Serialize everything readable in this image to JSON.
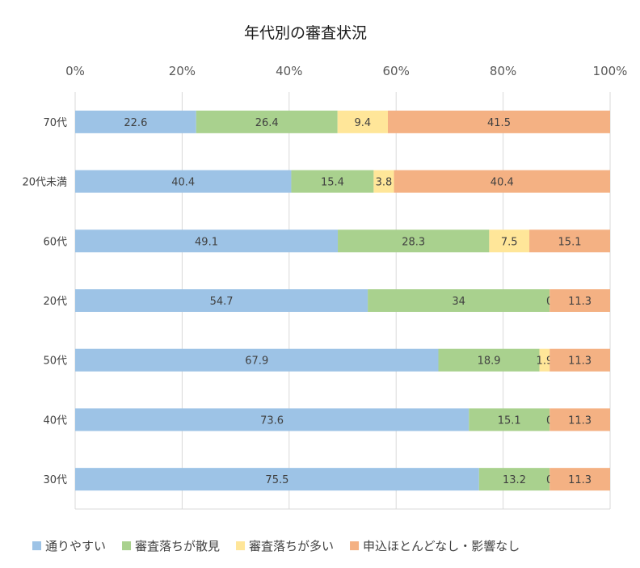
{
  "chart_data": {
    "type": "bar",
    "orientation": "horizontal",
    "stacked": "percent",
    "title": "年代別の審査状況",
    "xlabel": "",
    "ylabel": "",
    "xlim": [
      0,
      100
    ],
    "x_ticks": [
      "0%",
      "20%",
      "40%",
      "60%",
      "80%",
      "100%"
    ],
    "grid": true,
    "legend_position": "bottom",
    "categories": [
      "70代",
      "20代未満",
      "60代",
      "20代",
      "50代",
      "40代",
      "30代"
    ],
    "series": [
      {
        "name": "通りやすい",
        "color": "#9dc3e6",
        "values": [
          22.6,
          40.4,
          49.1,
          54.7,
          67.9,
          73.6,
          75.5
        ]
      },
      {
        "name": "審査落ちが散見",
        "color": "#a9d18e",
        "values": [
          26.4,
          15.4,
          28.3,
          34,
          18.9,
          15.1,
          13.2
        ]
      },
      {
        "name": "審査落ちが多い",
        "color": "#ffe699",
        "values": [
          9.4,
          3.8,
          7.5,
          0,
          1.9,
          0,
          0
        ]
      },
      {
        "name": "申込ほとんどなし・影響なし",
        "color": "#f4b183",
        "values": [
          41.5,
          40.4,
          15.1,
          11.3,
          11.3,
          11.3,
          11.3
        ]
      }
    ]
  }
}
